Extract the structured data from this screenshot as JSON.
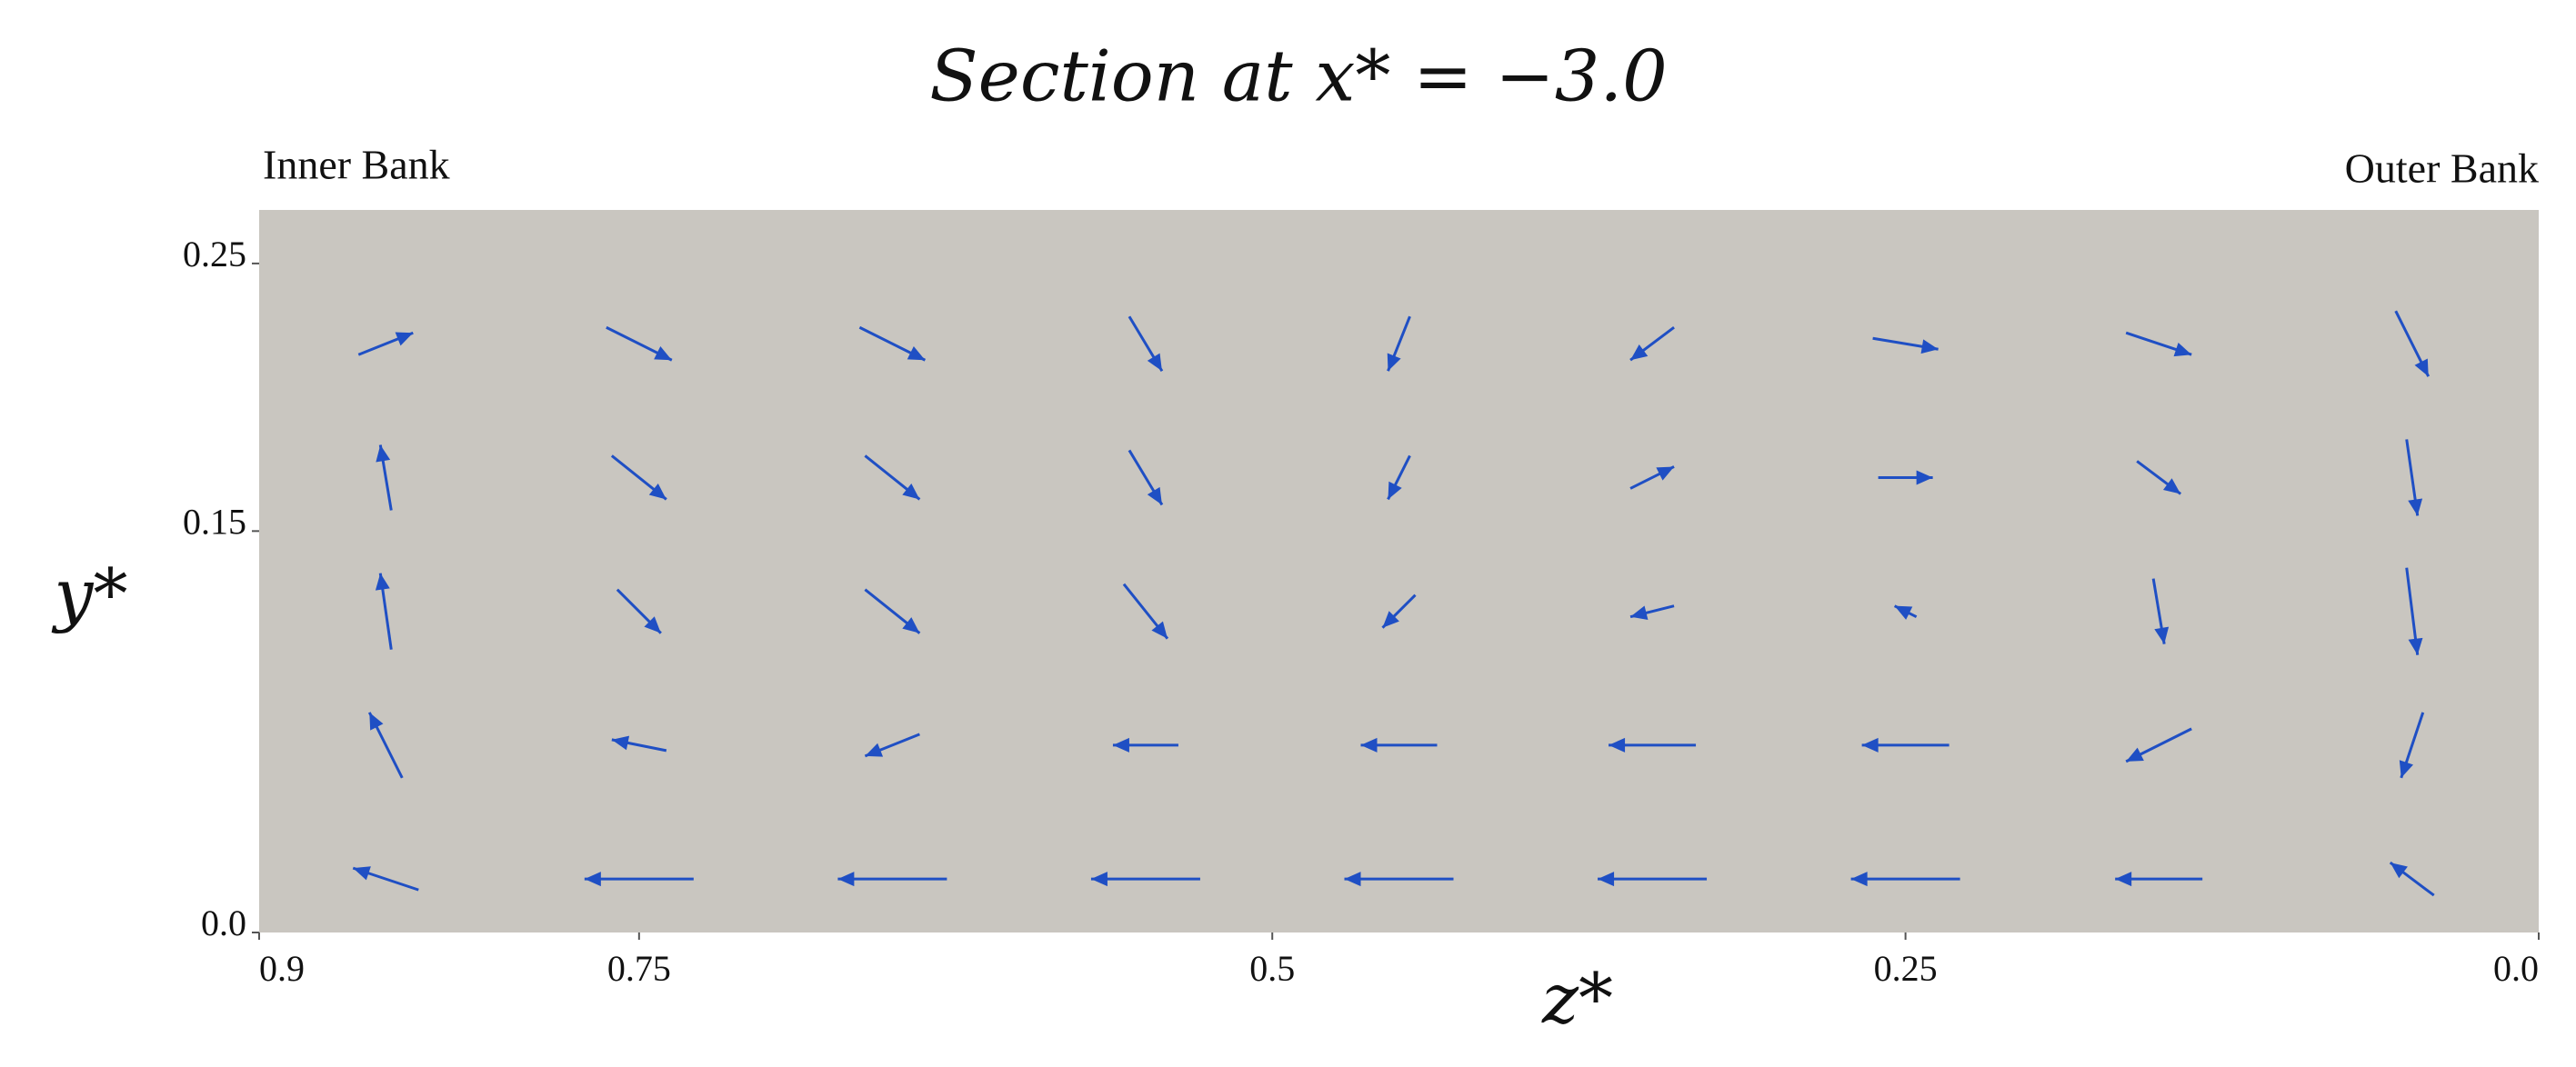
{
  "chart_data": {
    "type": "quiver",
    "title": "Section at x* = −3.0",
    "xlabel": "z*",
    "ylabel": "y*",
    "annotations": [
      "Inner Bank",
      "Outer Bank"
    ],
    "xlim": [
      0.9,
      0.0
    ],
    "ylim": [
      0,
      0.27
    ],
    "xticks": [
      0.9,
      0.75,
      0.5,
      0.25,
      {
        "value": 0,
        "label": "0.0"
      }
    ],
    "yticks": [
      {
        "value": 0,
        "label": "0.0"
      },
      0.15,
      0.25
    ],
    "color": "#1f4fc4",
    "background": "#c9c6c0",
    "x": [
      0.85,
      0.75,
      0.65,
      0.55,
      0.45,
      0.35,
      0.25,
      0.15,
      0.05,
      0.85,
      0.75,
      0.65,
      0.55,
      0.45,
      0.35,
      0.25,
      0.15,
      0.05,
      0.85,
      0.75,
      0.65,
      0.55,
      0.45,
      0.35,
      0.25,
      0.15,
      0.05,
      0.85,
      0.75,
      0.65,
      0.55,
      0.45,
      0.35,
      0.25,
      0.15,
      0.05,
      0.85,
      0.75,
      0.65,
      0.55,
      0.45,
      0.35,
      0.25,
      0.15,
      0.05
    ],
    "y": [
      0.02,
      0.02,
      0.02,
      0.02,
      0.02,
      0.02,
      0.02,
      0.02,
      0.02,
      0.07,
      0.07,
      0.07,
      0.07,
      0.07,
      0.07,
      0.07,
      0.07,
      0.07,
      0.12,
      0.12,
      0.12,
      0.12,
      0.12,
      0.12,
      0.12,
      0.12,
      0.12,
      0.17,
      0.17,
      0.17,
      0.17,
      0.17,
      0.17,
      0.17,
      0.17,
      0.17,
      0.22,
      0.22,
      0.22,
      0.22,
      0.22,
      0.22,
      0.22,
      0.22,
      0.22
    ],
    "u": [
      0.6,
      1,
      1,
      1,
      1,
      1,
      1,
      0.8,
      0.4,
      0.3,
      0.5,
      0.5,
      0.6,
      0.7,
      0.8,
      0.8,
      0.6,
      0.2,
      0.1,
      -0.4,
      -0.5,
      -0.4,
      0.3,
      0.4,
      0.2,
      -0.1,
      -0.1,
      0.1,
      -0.5,
      -0.5,
      -0.3,
      0.2,
      -0.4,
      -0.5,
      -0.4,
      -0.1,
      -0.5,
      -0.6,
      -0.6,
      -0.3,
      0.2,
      0.4,
      -0.6,
      -0.6,
      -0.3
    ],
    "v": [
      0.2,
      0,
      0,
      0,
      0,
      0,
      0,
      0,
      0.3,
      0.6,
      0.1,
      -0.2,
      0,
      0,
      0,
      0,
      -0.3,
      -0.6,
      0.7,
      -0.4,
      -0.4,
      -0.5,
      -0.3,
      -0.1,
      0.1,
      -0.6,
      -0.8,
      0.6,
      -0.4,
      -0.4,
      -0.5,
      -0.4,
      0.2,
      0,
      -0.3,
      -0.7,
      0.2,
      -0.3,
      -0.3,
      -0.5,
      -0.5,
      -0.3,
      -0.1,
      -0.2,
      -0.6
    ]
  }
}
